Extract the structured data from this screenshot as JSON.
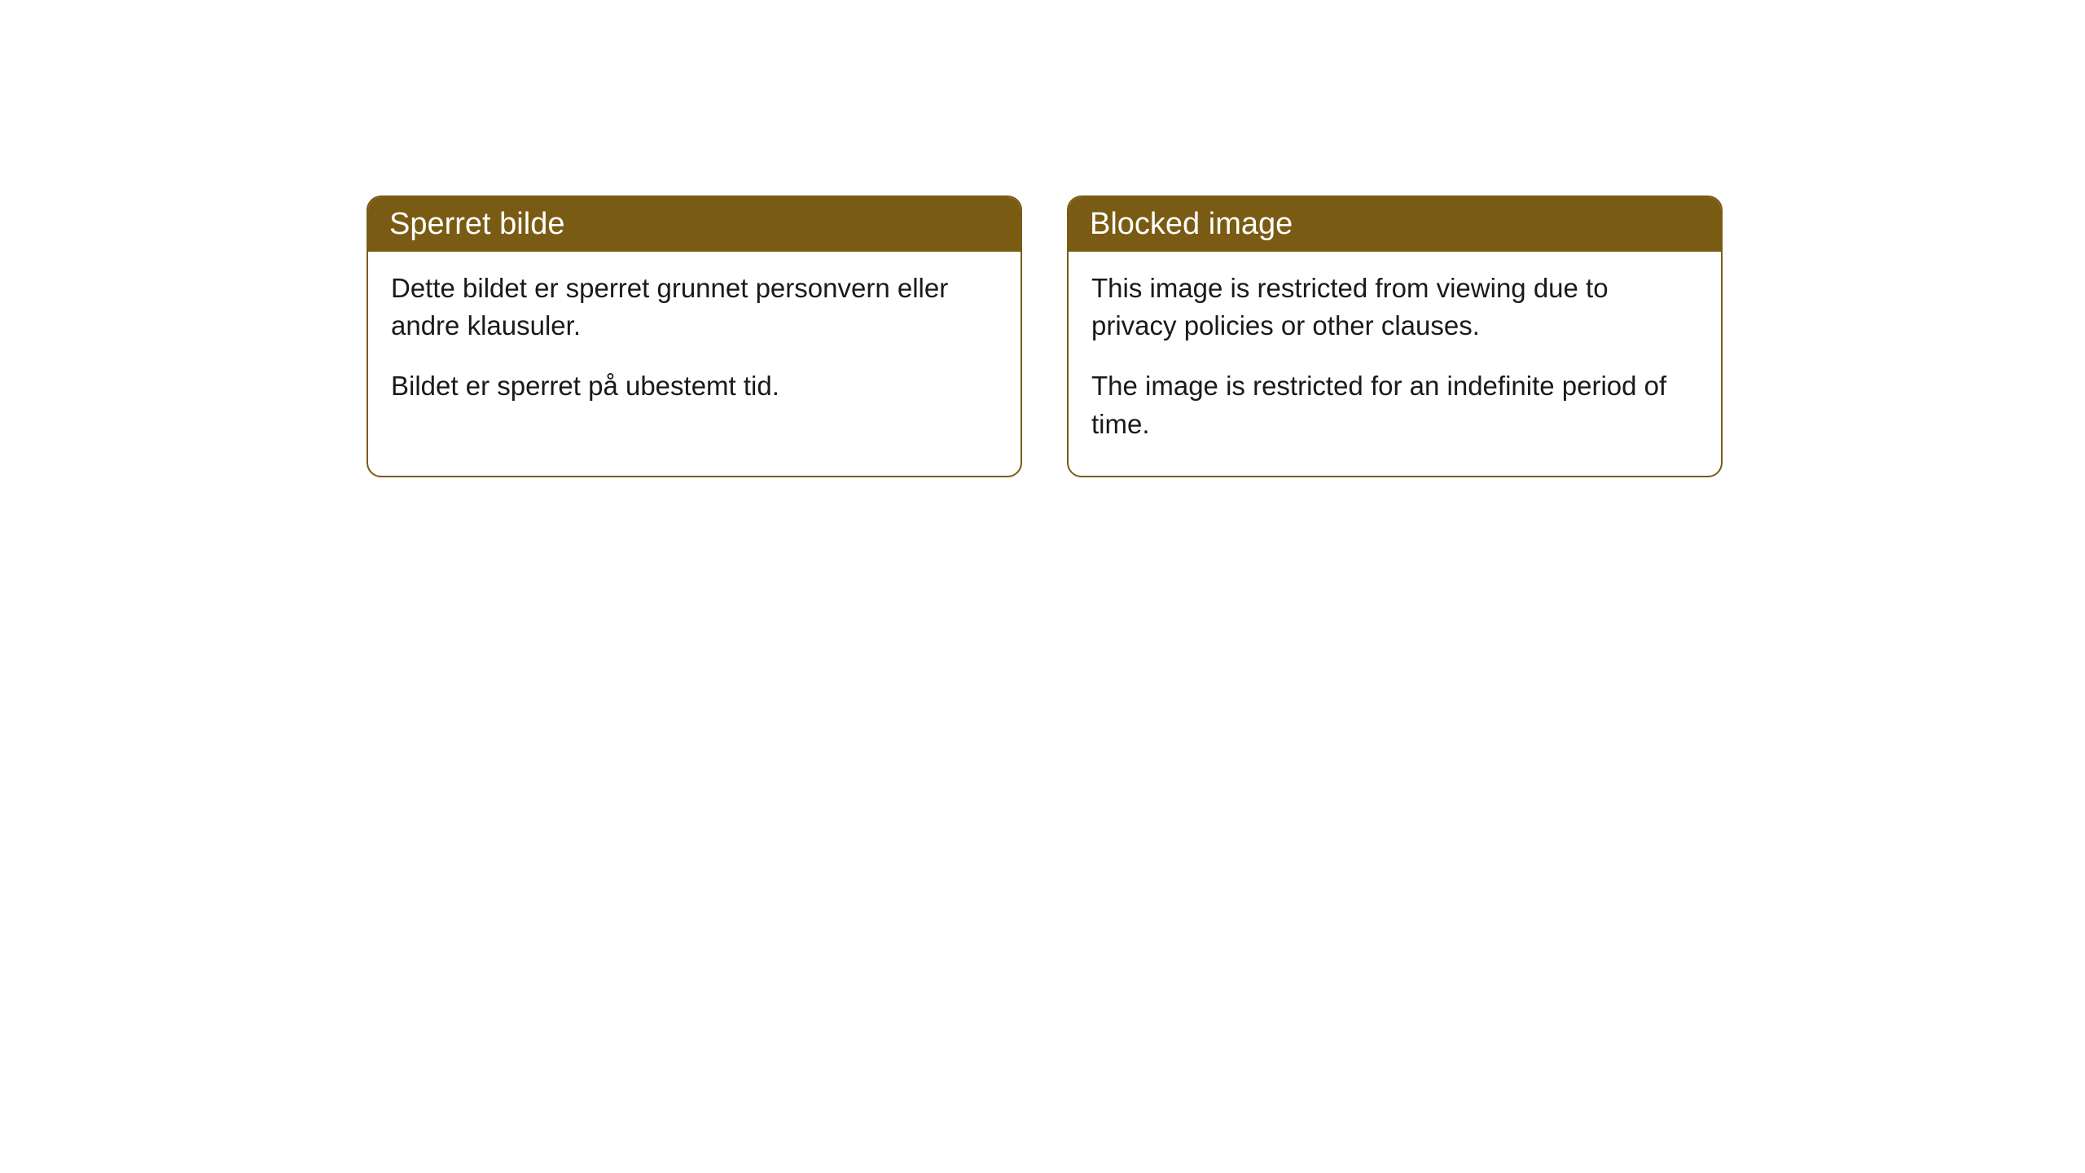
{
  "cards": [
    {
      "title": "Sperret bilde",
      "paragraph1": "Dette bildet er sperret grunnet personvern eller andre klausuler.",
      "paragraph2": "Bildet er sperret på ubestemt tid."
    },
    {
      "title": "Blocked image",
      "paragraph1": "This image is restricted from viewing due to privacy policies or other clauses.",
      "paragraph2": "The image is restricted for an indefinite period of time."
    }
  ],
  "styling": {
    "header_bg_color": "#7a5b13",
    "header_text_color": "#ffffff",
    "border_color": "#7a5b13",
    "body_bg_color": "#ffffff",
    "body_text_color": "#1a1a1a",
    "border_radius": 18,
    "title_fontsize": 38,
    "body_fontsize": 33
  }
}
